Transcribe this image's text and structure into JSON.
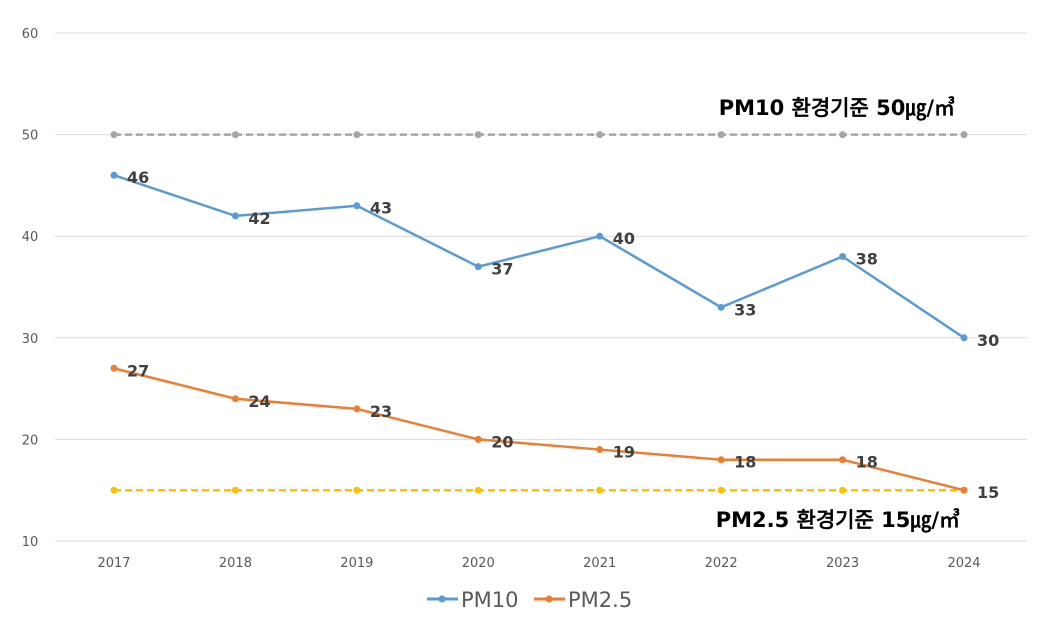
{
  "chart_data": {
    "type": "line",
    "categories": [
      "2017",
      "2018",
      "2019",
      "2020",
      "2021",
      "2022",
      "2023",
      "2024"
    ],
    "ylim": [
      10,
      60
    ],
    "yticks": [
      10,
      20,
      30,
      40,
      50,
      60
    ],
    "grid": true,
    "legend_position": "bottom",
    "series": [
      {
        "name": "PM10",
        "color": "#5b9bd5",
        "values": [
          46,
          42,
          43,
          37,
          40,
          33,
          38,
          30
        ]
      },
      {
        "name": "PM2.5",
        "color": "#ed7d31",
        "values": [
          27,
          24,
          23,
          20,
          19,
          18,
          18,
          15
        ]
      }
    ],
    "reference_lines": [
      {
        "value": 50,
        "color": "#a5a5a5",
        "label": "PM10 환경기준 50㎍/㎥"
      },
      {
        "value": 15,
        "color": "#ffc000",
        "label": "PM2.5 환경기준 15㎍/㎥"
      }
    ]
  }
}
